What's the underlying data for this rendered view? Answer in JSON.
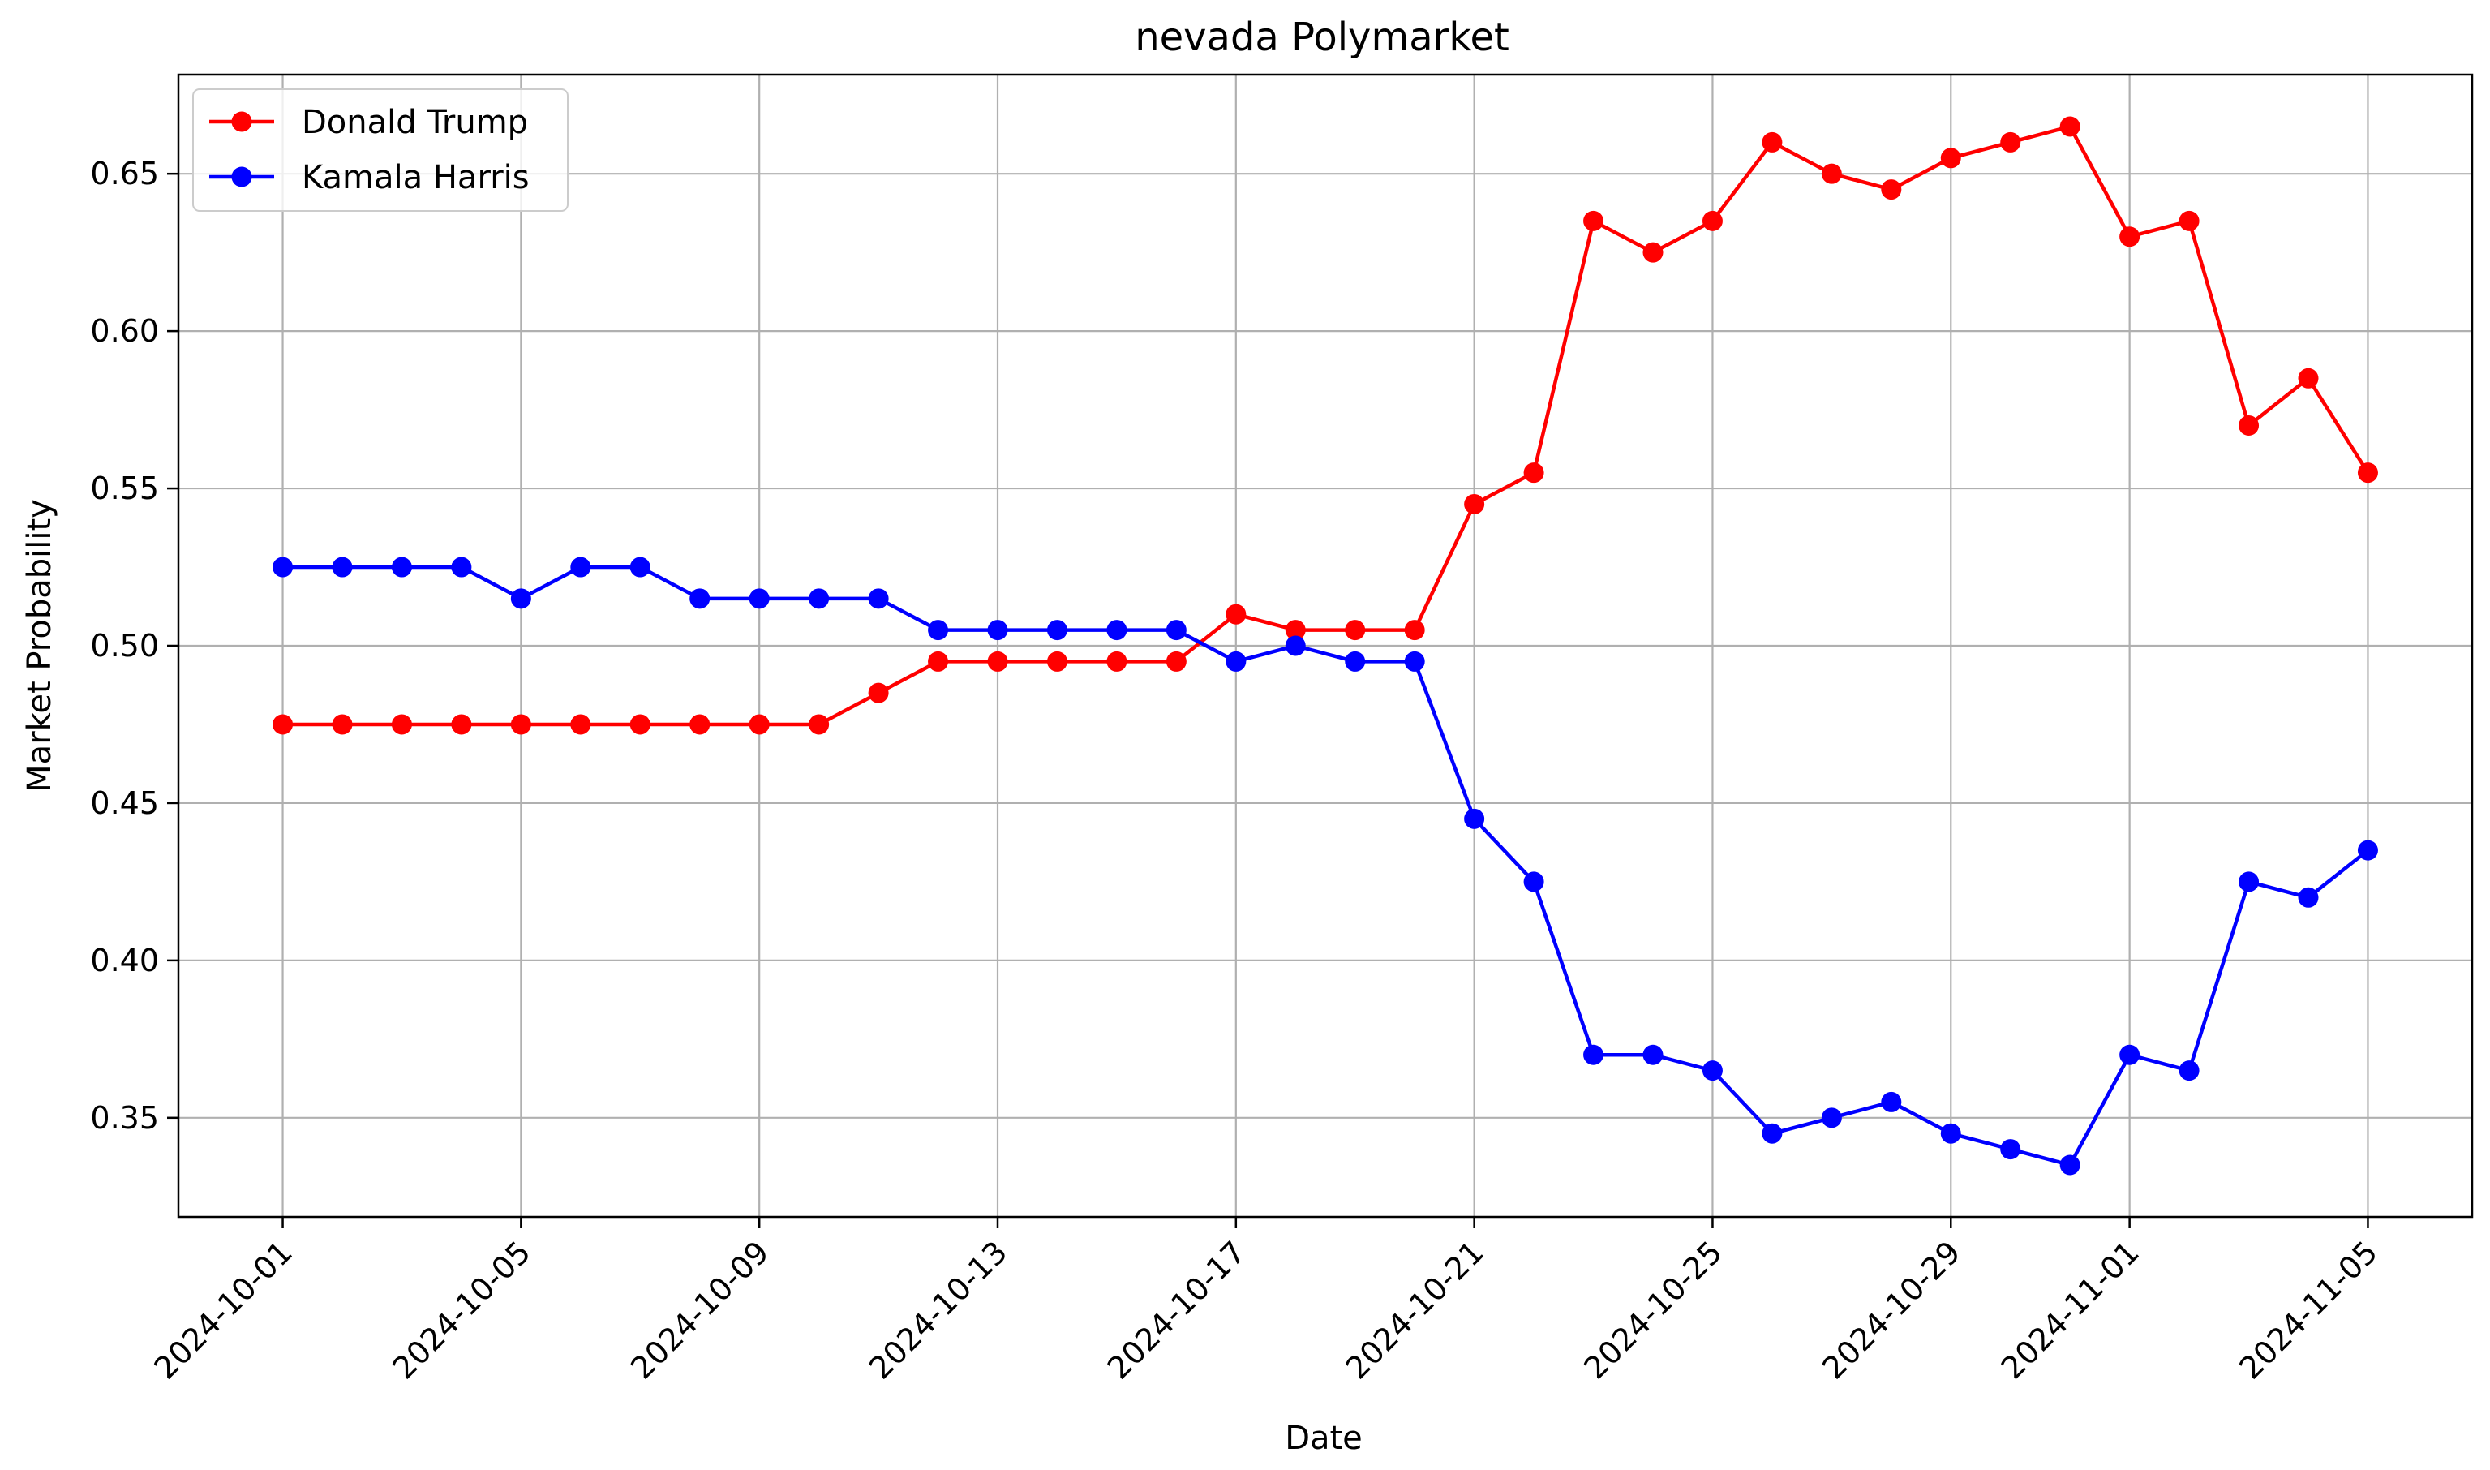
{
  "chart_data": {
    "type": "line",
    "title": "nevada Polymarket",
    "xlabel": "Date",
    "ylabel": "Market Probability",
    "grid": true,
    "legend_position": "top-left",
    "x": [
      "2024-10-01",
      "2024-10-02",
      "2024-10-03",
      "2024-10-04",
      "2024-10-05",
      "2024-10-06",
      "2024-10-07",
      "2024-10-08",
      "2024-10-09",
      "2024-10-10",
      "2024-10-11",
      "2024-10-12",
      "2024-10-13",
      "2024-10-14",
      "2024-10-15",
      "2024-10-16",
      "2024-10-17",
      "2024-10-18",
      "2024-10-19",
      "2024-10-20",
      "2024-10-21",
      "2024-10-22",
      "2024-10-23",
      "2024-10-24",
      "2024-10-25",
      "2024-10-26",
      "2024-10-27",
      "2024-10-28",
      "2024-10-29",
      "2024-10-30",
      "2024-10-31",
      "2024-11-01",
      "2024-11-02",
      "2024-11-03",
      "2024-11-04",
      "2024-11-05"
    ],
    "x_ticks": [
      "2024-10-01",
      "2024-10-05",
      "2024-10-09",
      "2024-10-13",
      "2024-10-17",
      "2024-10-21",
      "2024-10-25",
      "2024-10-29",
      "2024-11-01",
      "2024-11-05"
    ],
    "y_ticks": [
      "0.35",
      "0.40",
      "0.45",
      "0.50",
      "0.55",
      "0.60",
      "0.65"
    ],
    "ylim": [
      0.3185,
      0.6815
    ],
    "xlim": [
      "2024-09-29 06:00",
      "2024-11-06 18:00"
    ],
    "series": [
      {
        "name": "Donald Trump",
        "color": "#ff0000",
        "values": [
          0.475,
          0.475,
          0.475,
          0.475,
          0.475,
          0.475,
          0.475,
          0.475,
          0.475,
          0.475,
          0.485,
          0.495,
          0.495,
          0.495,
          0.495,
          0.495,
          0.51,
          0.505,
          0.505,
          0.505,
          0.545,
          0.555,
          0.635,
          0.625,
          0.635,
          0.66,
          0.65,
          0.645,
          0.655,
          0.66,
          0.665,
          0.63,
          0.635,
          0.57,
          0.585,
          0.555
        ]
      },
      {
        "name": "Kamala Harris",
        "color": "#0000ff",
        "values": [
          0.525,
          0.525,
          0.525,
          0.525,
          0.515,
          0.525,
          0.525,
          0.515,
          0.515,
          0.515,
          0.515,
          0.505,
          0.505,
          0.505,
          0.505,
          0.505,
          0.495,
          0.5,
          0.495,
          0.495,
          0.445,
          0.425,
          0.37,
          0.37,
          0.365,
          0.345,
          0.35,
          0.355,
          0.345,
          0.34,
          0.335,
          0.37,
          0.365,
          0.425,
          0.42,
          0.435
        ]
      }
    ]
  }
}
